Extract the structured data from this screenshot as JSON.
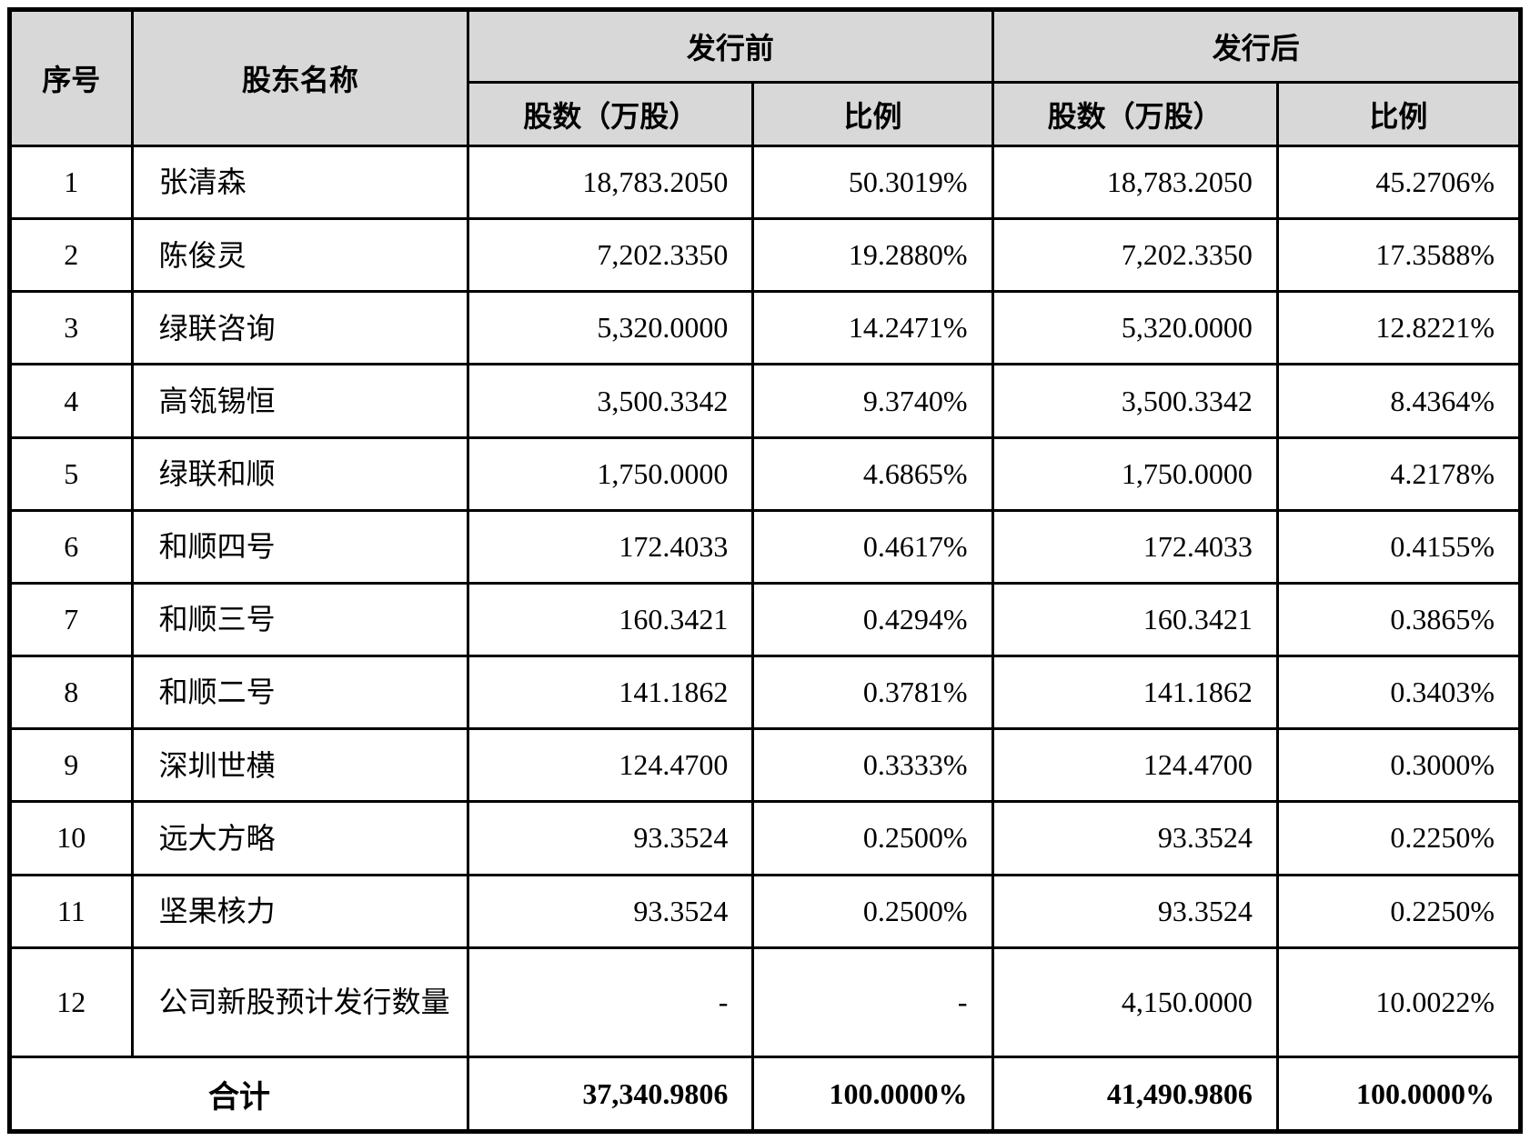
{
  "table": {
    "title_semantic": "股东持股结构（发行前后）",
    "colors": {
      "header_bg": "#d8d8d8",
      "border": "#000000",
      "body_bg": "#ffffff"
    },
    "header": {
      "col_index": "序号",
      "col_name": "股东名称",
      "group_before": "发行前",
      "group_after": "发行后",
      "sub": [
        "股数（万股）",
        "比例",
        "股数（万股）",
        "比例"
      ]
    },
    "rows": [
      {
        "no": "1",
        "name": "张清森",
        "pre_shares": "18,783.2050",
        "pre_ratio": "50.3019%",
        "post_shares": "18,783.2050",
        "post_ratio": "45.2706%"
      },
      {
        "no": "2",
        "name": "陈俊灵",
        "pre_shares": "7,202.3350",
        "pre_ratio": "19.2880%",
        "post_shares": "7,202.3350",
        "post_ratio": "17.3588%"
      },
      {
        "no": "3",
        "name": "绿联咨询",
        "pre_shares": "5,320.0000",
        "pre_ratio": "14.2471%",
        "post_shares": "5,320.0000",
        "post_ratio": "12.8221%"
      },
      {
        "no": "4",
        "name": "高瓴锡恒",
        "pre_shares": "3,500.3342",
        "pre_ratio": "9.3740%",
        "post_shares": "3,500.3342",
        "post_ratio": "8.4364%"
      },
      {
        "no": "5",
        "name": "绿联和顺",
        "pre_shares": "1,750.0000",
        "pre_ratio": "4.6865%",
        "post_shares": "1,750.0000",
        "post_ratio": "4.2178%"
      },
      {
        "no": "6",
        "name": "和顺四号",
        "pre_shares": "172.4033",
        "pre_ratio": "0.4617%",
        "post_shares": "172.4033",
        "post_ratio": "0.4155%"
      },
      {
        "no": "7",
        "name": "和顺三号",
        "pre_shares": "160.3421",
        "pre_ratio": "0.4294%",
        "post_shares": "160.3421",
        "post_ratio": "0.3865%"
      },
      {
        "no": "8",
        "name": "和顺二号",
        "pre_shares": "141.1862",
        "pre_ratio": "0.3781%",
        "post_shares": "141.1862",
        "post_ratio": "0.3403%"
      },
      {
        "no": "9",
        "name": "深圳世横",
        "pre_shares": "124.4700",
        "pre_ratio": "0.3333%",
        "post_shares": "124.4700",
        "post_ratio": "0.3000%"
      },
      {
        "no": "10",
        "name": "远大方略",
        "pre_shares": "93.3524",
        "pre_ratio": "0.2500%",
        "post_shares": "93.3524",
        "post_ratio": "0.2250%"
      },
      {
        "no": "11",
        "name": "坚果核力",
        "pre_shares": "93.3524",
        "pre_ratio": "0.2500%",
        "post_shares": "93.3524",
        "post_ratio": "0.2250%"
      },
      {
        "no": "12",
        "name": "公司新股预计发行数量",
        "pre_shares": "-",
        "pre_ratio": "-",
        "post_shares": "4,150.0000",
        "post_ratio": "10.0022%"
      }
    ],
    "total": {
      "label": "合计",
      "pre_shares": "37,340.9806",
      "pre_ratio": "100.0000%",
      "post_shares": "41,490.9806",
      "post_ratio": "100.0000%"
    }
  }
}
